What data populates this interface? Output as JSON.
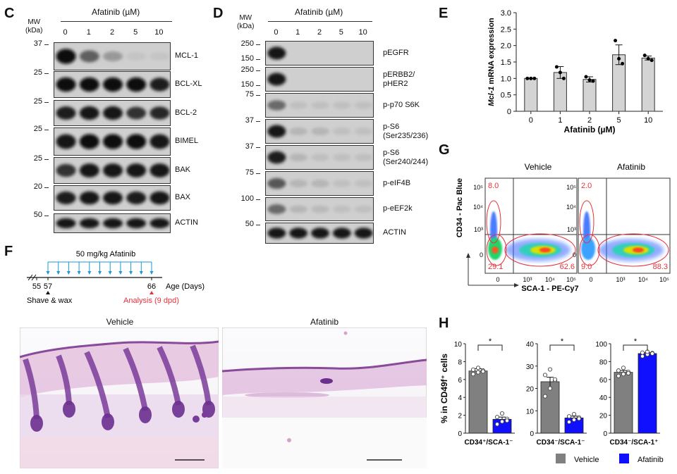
{
  "panelC": {
    "letter": "C",
    "mw_label": "MW\n(kDa)",
    "mw_line1": "MW",
    "mw_line2": "(kDa)",
    "treatment": "Afatinib (µM)",
    "lanes": [
      "0",
      "1",
      "2",
      "5",
      "10"
    ],
    "rows": [
      {
        "mw": "37",
        "label": "MCL-1",
        "bands": [
          1.0,
          0.55,
          0.25,
          0.02,
          0.02
        ]
      },
      {
        "mw": "25",
        "label": "BCL-XL",
        "bands": [
          1.0,
          1.0,
          1.0,
          1.0,
          0.9
        ]
      },
      {
        "mw": "25",
        "label": "BCL-2",
        "bands": [
          0.9,
          0.95,
          0.95,
          0.8,
          0.85
        ]
      },
      {
        "mw": "25",
        "label": "BIMEL",
        "bands": [
          0.95,
          1.0,
          1.0,
          1.0,
          0.95
        ]
      },
      {
        "mw": "25",
        "label": "BAK",
        "bands": [
          0.8,
          0.95,
          0.95,
          0.95,
          0.95
        ]
      },
      {
        "mw": "20",
        "label": "BAX",
        "bands": [
          0.9,
          0.95,
          0.95,
          0.9,
          0.95
        ]
      },
      {
        "mw": "50",
        "label": "ACTIN",
        "bands": [
          0.95,
          0.95,
          0.95,
          0.95,
          0.95
        ]
      }
    ]
  },
  "panelD": {
    "letter": "D",
    "mw_line1": "MW",
    "mw_line2": "(kDa)",
    "treatment": "Afatinib (µM)",
    "lanes": [
      "0",
      "1",
      "2",
      "5",
      "10"
    ],
    "rows": [
      {
        "mws": [
          "250",
          "150"
        ],
        "label": "pEGFR",
        "bands": [
          0.95,
          0.0,
          0.0,
          0.0,
          0.0
        ]
      },
      {
        "mws": [
          "250",
          "150"
        ],
        "label": "pERBB2/\npHER2",
        "label1": "pERBB2/",
        "label2": "pHER2",
        "bands": [
          0.95,
          0.0,
          0.0,
          0.0,
          0.0
        ]
      },
      {
        "mws": [
          "75"
        ],
        "label": "p-p70 S6K",
        "bands": [
          0.5,
          0.05,
          0.05,
          0.05,
          0.05
        ]
      },
      {
        "mws": [
          "37"
        ],
        "label": "p-S6 (Ser235/236)",
        "label1": "p-S6",
        "label2": "(Ser235/236)",
        "bands": [
          0.95,
          0.1,
          0.1,
          0.05,
          0.05
        ]
      },
      {
        "mws": [
          "37"
        ],
        "label": "p-S6 (Ser240/244)",
        "label1": "p-S6",
        "label2": "(Ser240/244)",
        "bands": [
          0.9,
          0.1,
          0.05,
          0.05,
          0.05
        ]
      },
      {
        "mws": [
          "75"
        ],
        "label": "p-eIF4B",
        "bands": [
          0.6,
          0.1,
          0.1,
          0.05,
          0.05
        ]
      },
      {
        "mws": [
          "100"
        ],
        "label": "p-eEF2k",
        "bands": [
          0.5,
          0.1,
          0.08,
          0.05,
          0.05
        ]
      },
      {
        "mws": [
          "50"
        ],
        "label": "ACTIN",
        "bands": [
          0.95,
          0.95,
          0.95,
          0.95,
          0.95
        ]
      }
    ]
  },
  "panelE": {
    "letter": "E",
    "chart_data": {
      "type": "bar",
      "categories": [
        "0",
        "1",
        "2",
        "5",
        "10"
      ],
      "values": [
        1.0,
        1.18,
        0.97,
        1.72,
        1.62
      ],
      "errors": [
        0.0,
        0.18,
        0.08,
        0.3,
        0.06
      ],
      "points": [
        [
          1.0,
          1.0,
          1.0
        ],
        [
          1.35,
          1.18,
          1.0
        ],
        [
          1.05,
          0.95,
          0.92
        ],
        [
          2.15,
          1.6,
          1.45
        ],
        [
          1.7,
          1.6,
          1.55
        ]
      ],
      "ylabel_italic": "Mcl-1",
      "ylabel_rest": " mRNA expression",
      "xlabel": "Afatinib (µM)",
      "ylim": [
        0,
        3.0
      ],
      "yticks": [
        "0",
        "0.5",
        "1.0",
        "1.5",
        "2.0",
        "2.5",
        "3.0"
      ],
      "ytick_values": [
        0,
        0.5,
        1.0,
        1.5,
        2.0,
        2.5,
        3.0
      ]
    }
  },
  "panelF": {
    "letter": "F",
    "dose_label": "50 mg/kg Afatinib",
    "day_55": "55",
    "day_57": "57",
    "day_66": "66",
    "age_label": "Age (Days)",
    "shave_label": "Shave & wax",
    "analysis_label": "Analysis (9 dpd)",
    "vehicle_title": "Vehicle",
    "afatinib_title": "Afatinib",
    "analysis_color": "#e8323c",
    "dose_color": "#1a9ad6"
  },
  "panelG": {
    "letter": "G",
    "vehicle_title": "Vehicle",
    "afatinib_title": "Afatinib",
    "yaxis": "CD34 - Pac Blue",
    "xaxis": "SCA-1 - PE-Cy7",
    "vehicle_gates": {
      "top_left": "8.0",
      "bottom_left": "29.1",
      "bottom_right": "62.6"
    },
    "afatinib_gates": {
      "top_left": "2.0",
      "bottom_left": "9.0",
      "bottom_right": "88.3"
    },
    "yticks": [
      "10⁵",
      "10⁴",
      "10³",
      "0"
    ],
    "xticks": [
      "0",
      "10³",
      "10⁴",
      "10⁵"
    ],
    "gate_color": "#e8323c"
  },
  "panelH": {
    "letter": "H",
    "ylabel": "% in CD49f⁺ cells",
    "legend": [
      {
        "name": "Vehicle",
        "color": "#808080"
      },
      {
        "name": "Afatinib",
        "color": "#1010ff"
      }
    ],
    "significance": "*",
    "chart_data": [
      {
        "type": "bar",
        "xlabel": "CD34⁺/SCA-1⁻",
        "ylim": [
          0,
          10
        ],
        "yticks": [
          "0",
          "2",
          "4",
          "6",
          "8",
          "10"
        ],
        "ytick_values": [
          0,
          2,
          4,
          6,
          8,
          10
        ],
        "series": [
          {
            "name": "Vehicle",
            "value": 6.95,
            "error": 0.25,
            "points": [
              6.6,
              6.8,
              7.0,
              7.1,
              7.3,
              6.9
            ]
          },
          {
            "name": "Afatinib",
            "value": 1.55,
            "error": 0.25,
            "points": [
              1.0,
              1.3,
              1.6,
              1.8,
              2.2,
              1.4
            ]
          }
        ]
      },
      {
        "type": "bar",
        "xlabel": "CD34⁻/SCA-1⁻",
        "ylim": [
          0,
          40
        ],
        "yticks": [
          "0",
          "10",
          "20",
          "30",
          "40"
        ],
        "ytick_values": [
          0,
          10,
          20,
          30,
          40
        ],
        "series": [
          {
            "name": "Vehicle",
            "value": 23.0,
            "error": 2.0,
            "points": [
              16.5,
              20.0,
              23.5,
              26.0,
              28.5,
              24.0
            ]
          },
          {
            "name": "Afatinib",
            "value": 6.8,
            "error": 0.8,
            "points": [
              5.0,
              6.0,
              7.0,
              7.5,
              8.5,
              6.5
            ]
          }
        ]
      },
      {
        "type": "bar",
        "xlabel": "CD34⁻/SCA-1⁺",
        "ylim": [
          0,
          100
        ],
        "yticks": [
          "0",
          "20",
          "40",
          "60",
          "80",
          "100"
        ],
        "ytick_values": [
          0,
          20,
          40,
          60,
          80,
          100
        ],
        "series": [
          {
            "name": "Vehicle",
            "value": 68.0,
            "error": 2.0,
            "points": [
              64.0,
              66.0,
              68.5,
              70.0,
              73.0,
              67.0
            ]
          },
          {
            "name": "Afatinib",
            "value": 89.0,
            "error": 1.0,
            "points": [
              86.0,
              88.0,
              89.5,
              90.0,
              91.0,
              89.0
            ]
          }
        ]
      }
    ]
  }
}
